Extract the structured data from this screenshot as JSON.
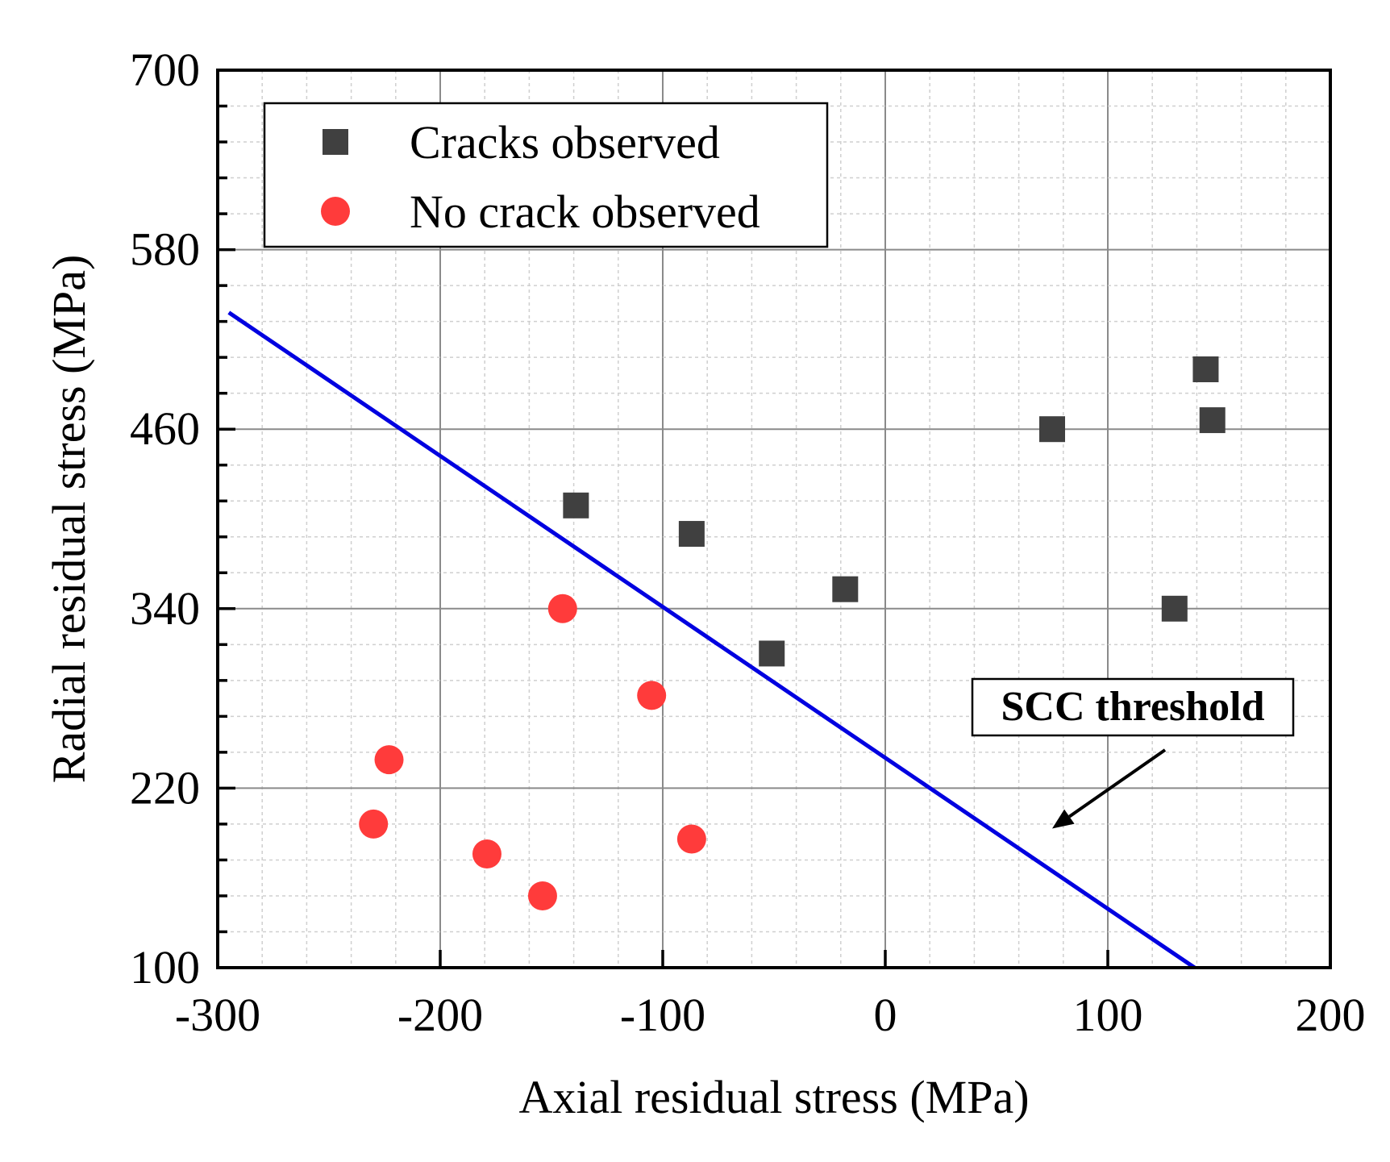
{
  "chart_data": {
    "type": "scatter",
    "title": "",
    "xlabel": "Axial residual stress (MPa)",
    "ylabel": "Radial residual stress (MPa)",
    "xlim": [
      -300,
      200
    ],
    "ylim": [
      100,
      700
    ],
    "xticks": [
      -300,
      -200,
      -100,
      0,
      100,
      200
    ],
    "xtick_labels": [
      "-300",
      "-200",
      "-100",
      "0",
      "100",
      "200"
    ],
    "yticks": [
      100,
      220,
      340,
      460,
      580,
      700
    ],
    "ytick_labels": [
      "100",
      "220",
      "340",
      "460",
      "580",
      "700"
    ],
    "grid": true,
    "legend_position": "top-left",
    "series": [
      {
        "name": "Cracks observed",
        "marker": "square",
        "color": "#404040",
        "points": [
          {
            "x": -139,
            "y": 409
          },
          {
            "x": -87,
            "y": 390
          },
          {
            "x": -51,
            "y": 310
          },
          {
            "x": -18,
            "y": 353
          },
          {
            "x": 75,
            "y": 460
          },
          {
            "x": 130,
            "y": 340
          },
          {
            "x": 144,
            "y": 500
          },
          {
            "x": 147,
            "y": 466
          }
        ]
      },
      {
        "name": "No crack observed",
        "marker": "circle",
        "color": "#ff3b3b",
        "points": [
          {
            "x": -145,
            "y": 340
          },
          {
            "x": -105,
            "y": 282
          },
          {
            "x": -223,
            "y": 239
          },
          {
            "x": -230,
            "y": 196
          },
          {
            "x": -179,
            "y": 176
          },
          {
            "x": -154,
            "y": 148
          },
          {
            "x": -87,
            "y": 186
          }
        ]
      }
    ],
    "threshold_line": {
      "name": "SCC threshold",
      "color": "#0000e0",
      "points": [
        {
          "x": -295,
          "y": 538
        },
        {
          "x": 139,
          "y": 100
        }
      ]
    },
    "annotations": [
      {
        "text": "SCC threshold",
        "arrow_to": {
          "x": 75,
          "y": 193
        }
      }
    ]
  }
}
